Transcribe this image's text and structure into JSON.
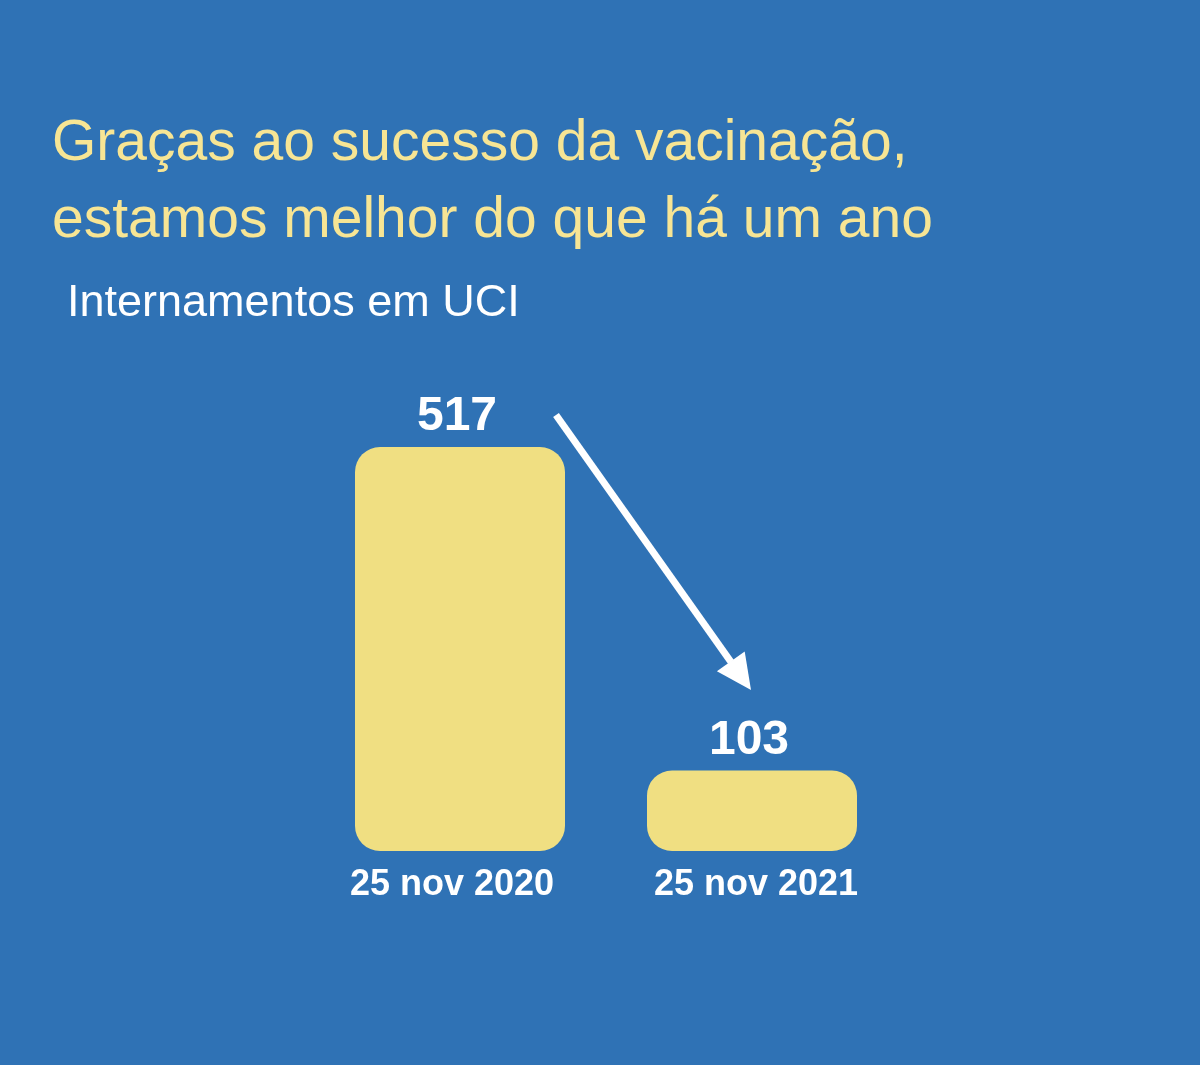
{
  "chart_data": {
    "type": "bar",
    "title": "Graças ao sucesso da vacinação, estamos melhor do que há um ano",
    "subtitle": "Internamentos em UCI",
    "categories": [
      "25 nov 2020",
      "25 nov 2021"
    ],
    "values": [
      517,
      103
    ],
    "color": "#f0df82",
    "data_labels": true
  }
}
